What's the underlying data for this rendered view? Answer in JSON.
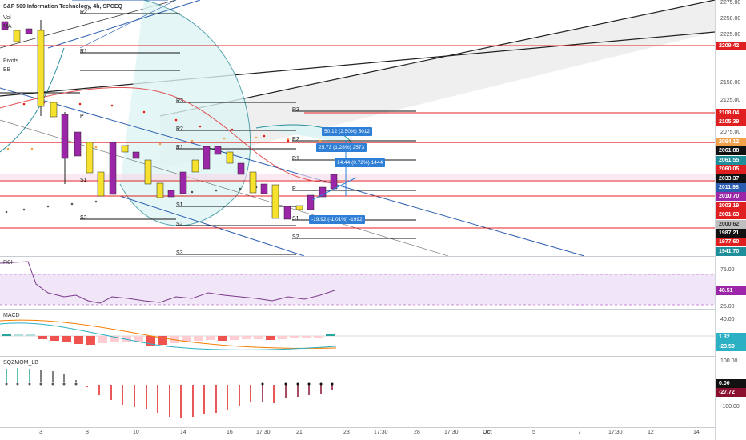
{
  "header": {
    "symbol_title": "S&P 500 Information Technology, 4h, SPCEQ",
    "vol_label": "Vol",
    "ma_label": "MA",
    "pivots_label": "Pivots",
    "bb_label": "BB"
  },
  "price_axis": {
    "ticks": [
      "2275.00",
      "2250.00",
      "2225.00",
      "2150.00",
      "2125.00",
      "2075.00",
      "2050.00",
      "2000.00",
      "1975.00",
      "1950.00"
    ],
    "tags": [
      {
        "text": "2209.42",
        "color": "#e02020"
      },
      {
        "text": "2108.04",
        "color": "#e02020"
      },
      {
        "text": "2105.39",
        "color": "#e02020"
      },
      {
        "text": "2064.12",
        "color": "#f2a24a"
      },
      {
        "text": "2061.88",
        "color": "#111111"
      },
      {
        "text": "2061.55",
        "color": "#1e8f9a"
      },
      {
        "text": "2060.05",
        "color": "#e02020"
      },
      {
        "text": "2033.37",
        "color": "#111111"
      },
      {
        "text": "2011.98",
        "color": "#2a5db0"
      },
      {
        "text": "2010.70",
        "color": "#9b27a8"
      },
      {
        "text": "2003.19",
        "color": "#e02020"
      },
      {
        "text": "2001.63",
        "color": "#e02020"
      },
      {
        "text": "2000.62",
        "color": "#bfbfbf"
      },
      {
        "text": "1987.21",
        "color": "#111111"
      },
      {
        "text": "1977.60",
        "color": "#e02020"
      },
      {
        "text": "1941.70",
        "color": "#1e8f9a"
      }
    ]
  },
  "pivot_labels": [
    "R2",
    "R1",
    "P",
    "R3",
    "R2",
    "R1",
    "S1",
    "S2",
    "S1",
    "S2",
    "S3",
    "R3",
    "R2",
    "R1",
    "P",
    "S1",
    "S2",
    "S3"
  ],
  "measure_boxes": [
    "50.12 (2.50%) 5012",
    "25.73 (1.28%) 2573",
    "14.44 (0.72%) 1444",
    "-19.92 (-1.01%) -1992"
  ],
  "rsi": {
    "label": "RSI",
    "ticks": [
      "75.00",
      "25.00"
    ],
    "value": "48.51",
    "value_color": "#9b27a8"
  },
  "macd": {
    "label": "MACD",
    "ticks": [
      "40.00",
      "-40.00"
    ],
    "values": [
      "1.32",
      "-23.59"
    ],
    "value_colors": [
      "#2bb0c4",
      "#2bb0c4"
    ]
  },
  "sqzmom": {
    "label": "SQZMOM_LB",
    "ticks": [
      "100.00",
      "-100.00"
    ],
    "values": [
      "0.00",
      "-27.72"
    ],
    "value_colors": [
      "#111111",
      "#8b1030"
    ]
  },
  "time_axis": [
    "3",
    "8",
    "10",
    "14",
    "16",
    "17:30",
    "21",
    "23",
    "17:30",
    "28",
    "17:30",
    "Oct",
    "5",
    "7",
    "17:30",
    "12",
    "14"
  ]
}
